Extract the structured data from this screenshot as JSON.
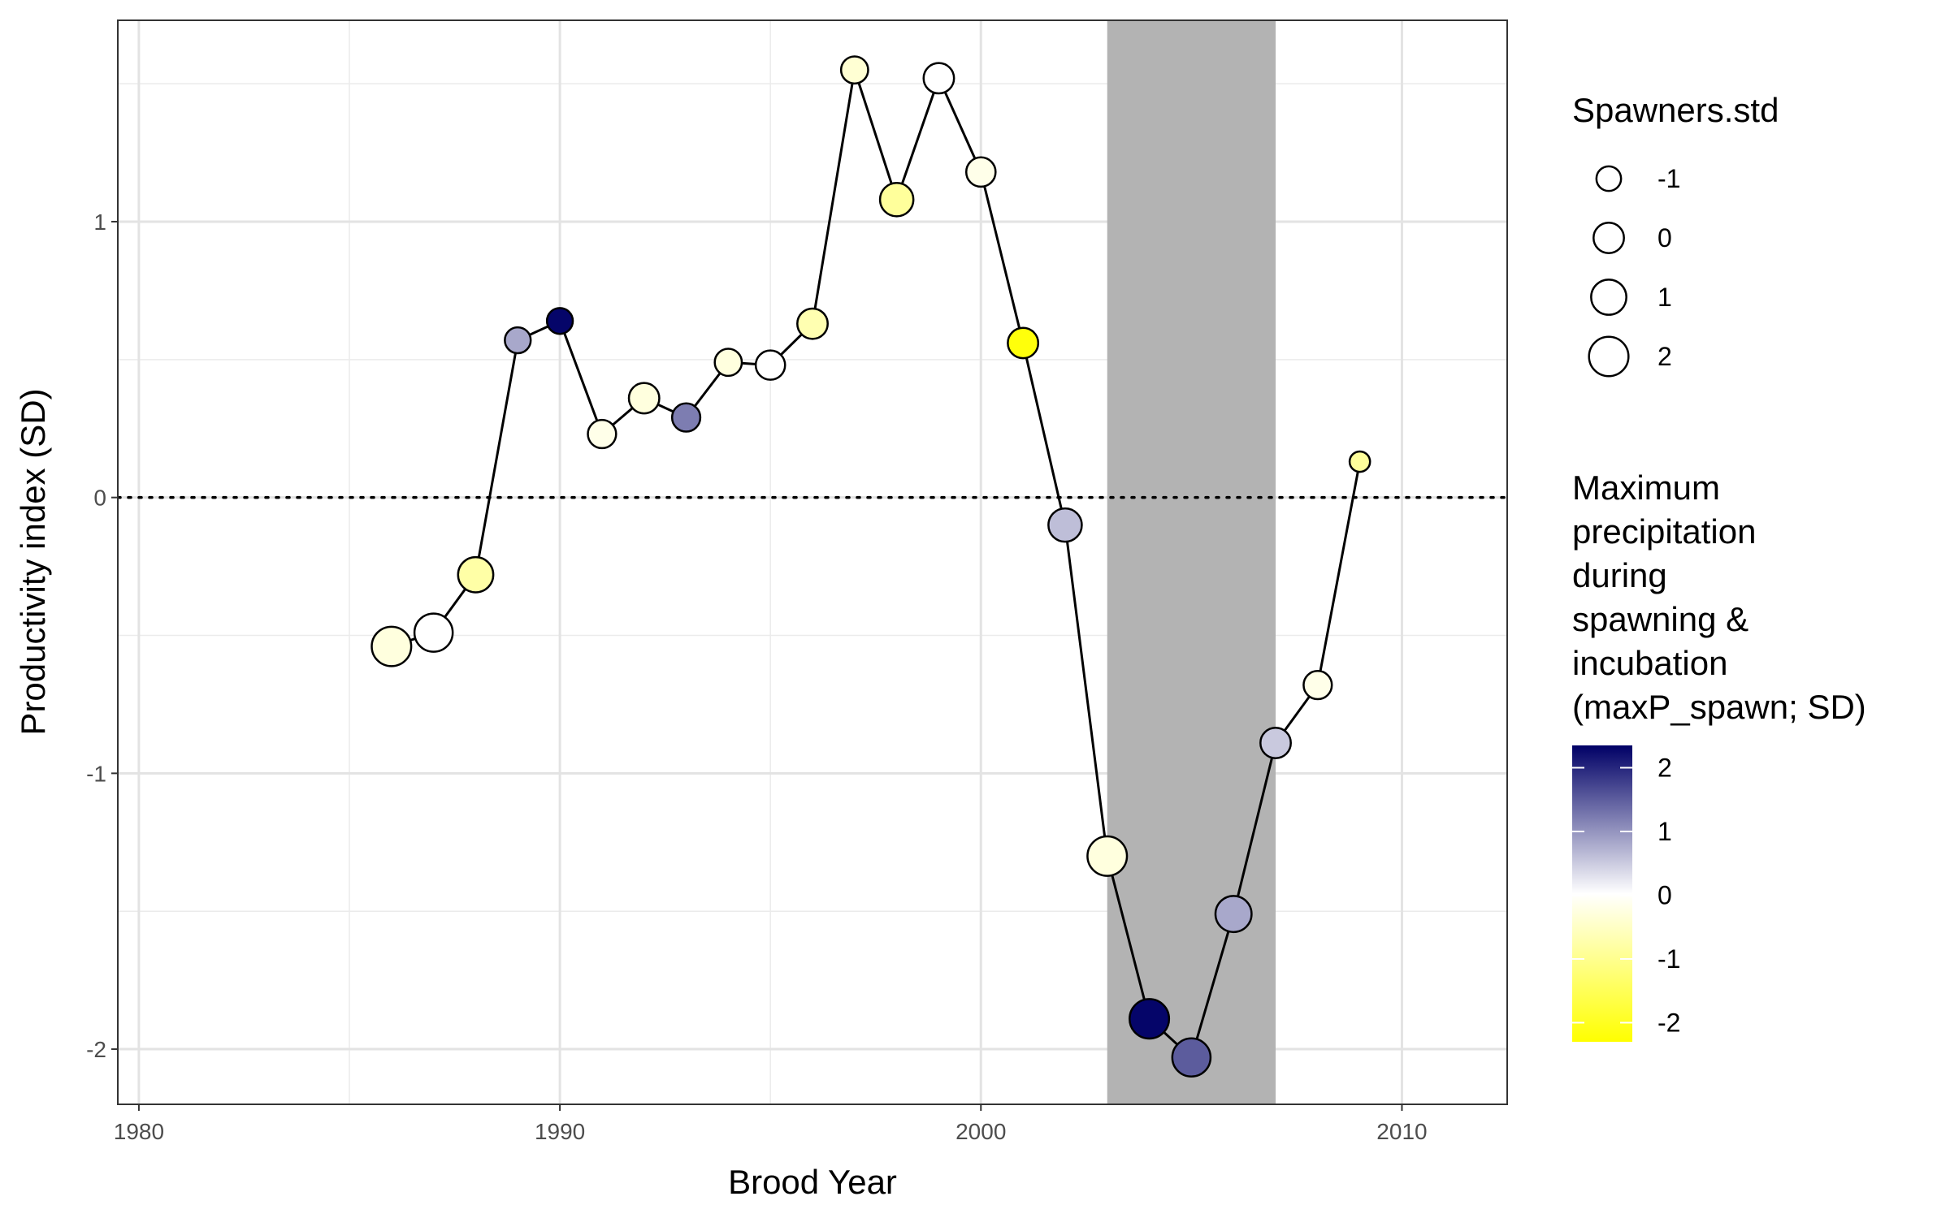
{
  "chart_data": {
    "type": "scatter",
    "xlabel": "Brood Year",
    "ylabel": "Productivity index (SD)",
    "xlim": [
      1979.5,
      2012.5
    ],
    "ylim": [
      -2.2,
      1.73
    ],
    "x_ticks": [
      1980,
      1990,
      2000,
      2010
    ],
    "y_ticks": [
      -2,
      -1,
      0,
      1
    ],
    "x_tick_labels": [
      "1980",
      "1990",
      "2000",
      "2010"
    ],
    "y_tick_labels": [
      "-2",
      "-1",
      "0",
      "1"
    ],
    "grid": true,
    "reference_line": {
      "y": 0,
      "style": "dotted"
    },
    "shaded_region": {
      "x": [
        2003,
        2007
      ]
    },
    "points": [
      {
        "x": 1986,
        "y": -0.54,
        "size": 2.0,
        "color": -0.3
      },
      {
        "x": 1987,
        "y": -0.49,
        "size": 1.7,
        "color": 0.0
      },
      {
        "x": 1988,
        "y": -0.28,
        "size": 1.0,
        "color": -0.8
      },
      {
        "x": 1989,
        "y": 0.57,
        "size": -0.8,
        "color": 0.8
      },
      {
        "x": 1990,
        "y": 0.64,
        "size": -0.8,
        "color": 2.3
      },
      {
        "x": 1991,
        "y": 0.23,
        "size": -0.4,
        "color": -0.2
      },
      {
        "x": 1992,
        "y": 0.36,
        "size": 0.0,
        "color": -0.3
      },
      {
        "x": 1993,
        "y": 0.29,
        "size": -0.4,
        "color": 1.2
      },
      {
        "x": 1994,
        "y": 0.49,
        "size": -0.6,
        "color": -0.3
      },
      {
        "x": 1995,
        "y": 0.48,
        "size": -0.2,
        "color": 0.0
      },
      {
        "x": 1996,
        "y": 0.63,
        "size": 0.0,
        "color": -0.7
      },
      {
        "x": 1997,
        "y": 1.55,
        "size": -0.6,
        "color": -0.4
      },
      {
        "x": 1998,
        "y": 1.08,
        "size": 0.6,
        "color": -0.9
      },
      {
        "x": 1999,
        "y": 1.52,
        "size": 0.0,
        "color": 0.0
      },
      {
        "x": 2000,
        "y": 1.18,
        "size": -0.2,
        "color": -0.2
      },
      {
        "x": 2001,
        "y": 0.56,
        "size": 0.0,
        "color": -2.2
      },
      {
        "x": 2002,
        "y": -0.1,
        "size": 0.6,
        "color": 0.6
      },
      {
        "x": 2003,
        "y": -1.3,
        "size": 2.0,
        "color": -0.3
      },
      {
        "x": 2004,
        "y": -1.89,
        "size": 2.0,
        "color": 2.3
      },
      {
        "x": 2005,
        "y": -2.03,
        "size": 1.7,
        "color": 1.5
      },
      {
        "x": 2006,
        "y": -1.51,
        "size": 1.2,
        "color": 0.8
      },
      {
        "x": 2007,
        "y": -0.89,
        "size": 0.0,
        "color": 0.5
      },
      {
        "x": 2008,
        "y": -0.68,
        "size": -0.4,
        "color": -0.2
      },
      {
        "x": 2009,
        "y": 0.13,
        "size": -1.6,
        "color": -0.9
      }
    ],
    "size_legend": {
      "title": "Spawners.std",
      "values": [
        -1,
        0,
        1,
        2
      ],
      "labels": [
        "-1",
        "0",
        "1",
        "2"
      ]
    },
    "color_legend": {
      "title_lines": [
        "Maximum",
        "precipitation",
        "during",
        "spawning &",
        "incubation",
        "(maxP_spawn; SD)"
      ],
      "range": [
        -2.3,
        2.35
      ],
      "ticks": [
        2,
        1,
        0,
        -1,
        -2
      ],
      "labels": [
        "2",
        "1",
        "0",
        "-1",
        "-2"
      ],
      "low_color": "#ffff00",
      "mid_color": "#ffffff",
      "high_color": "#000066"
    }
  }
}
